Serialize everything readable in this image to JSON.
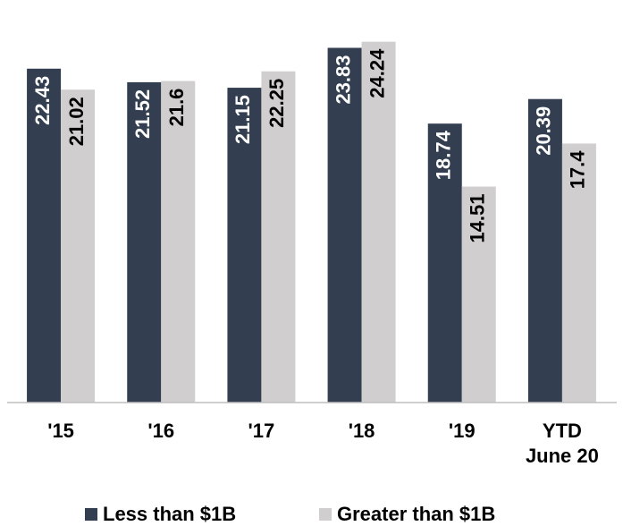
{
  "chart_data": {
    "type": "bar",
    "categories": [
      "'15",
      "'16",
      "'17",
      "'18",
      "'19",
      "YTD\nJune 20"
    ],
    "series": [
      {
        "name": "Less than $1B",
        "color": "#333f50",
        "values": [
          22.43,
          21.52,
          21.15,
          23.83,
          18.74,
          20.39
        ]
      },
      {
        "name": "Greater than $1B",
        "color": "#d0cece",
        "values": [
          21.02,
          21.6,
          22.25,
          24.24,
          14.51,
          17.4
        ]
      }
    ],
    "ylim": [
      0,
      25
    ]
  }
}
